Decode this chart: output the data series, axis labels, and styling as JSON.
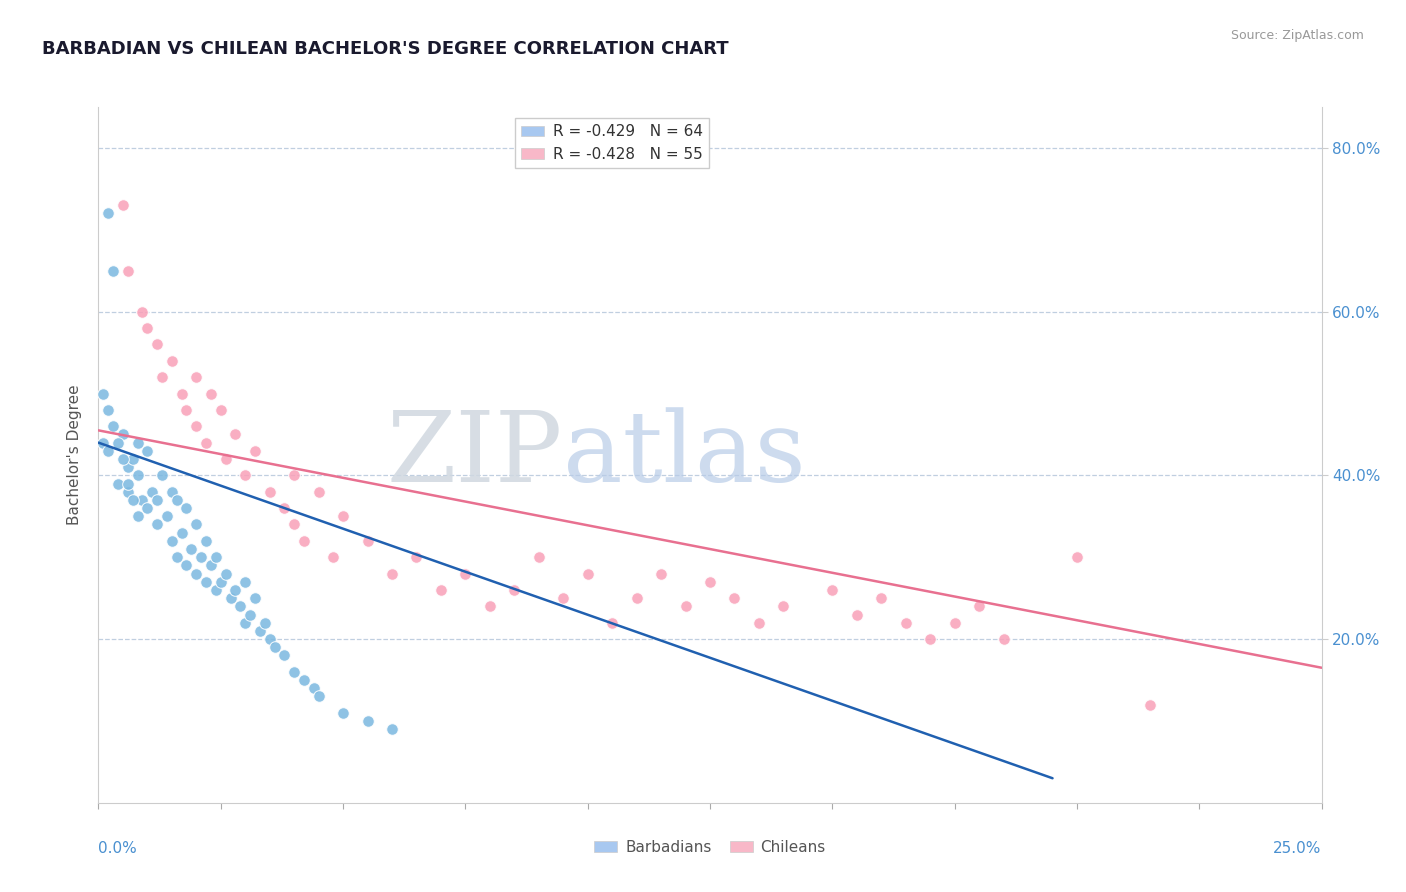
{
  "title": "BARBADIAN VS CHILEAN BACHELOR'S DEGREE CORRELATION CHART",
  "source": "Source: ZipAtlas.com",
  "ylabel": "Bachelor's Degree",
  "barbadian_color": "#7ab8e0",
  "chilean_color": "#f9a0b8",
  "barbadian_line_color": "#2060b0",
  "chilean_line_color": "#e87090",
  "xmin": 0.0,
  "xmax": 0.25,
  "ymin": 0.0,
  "ymax": 0.85,
  "barb_line_x0": 0.0,
  "barb_line_y0": 0.44,
  "barb_line_x1": 0.195,
  "barb_line_y1": 0.03,
  "chil_line_x0": 0.0,
  "chil_line_y0": 0.455,
  "chil_line_x1": 0.25,
  "chil_line_y1": 0.165,
  "barbadian_points": [
    [
      0.001,
      0.44
    ],
    [
      0.002,
      0.72
    ],
    [
      0.002,
      0.43
    ],
    [
      0.003,
      0.65
    ],
    [
      0.004,
      0.39
    ],
    [
      0.005,
      0.45
    ],
    [
      0.006,
      0.41
    ],
    [
      0.006,
      0.38
    ],
    [
      0.007,
      0.42
    ],
    [
      0.008,
      0.44
    ],
    [
      0.008,
      0.4
    ],
    [
      0.009,
      0.37
    ],
    [
      0.01,
      0.43
    ],
    [
      0.01,
      0.36
    ],
    [
      0.011,
      0.38
    ],
    [
      0.012,
      0.34
    ],
    [
      0.012,
      0.37
    ],
    [
      0.013,
      0.4
    ],
    [
      0.014,
      0.35
    ],
    [
      0.015,
      0.38
    ],
    [
      0.015,
      0.32
    ],
    [
      0.016,
      0.37
    ],
    [
      0.016,
      0.3
    ],
    [
      0.017,
      0.33
    ],
    [
      0.018,
      0.36
    ],
    [
      0.018,
      0.29
    ],
    [
      0.019,
      0.31
    ],
    [
      0.02,
      0.28
    ],
    [
      0.02,
      0.34
    ],
    [
      0.021,
      0.3
    ],
    [
      0.022,
      0.27
    ],
    [
      0.022,
      0.32
    ],
    [
      0.023,
      0.29
    ],
    [
      0.024,
      0.26
    ],
    [
      0.024,
      0.3
    ],
    [
      0.025,
      0.27
    ],
    [
      0.026,
      0.28
    ],
    [
      0.027,
      0.25
    ],
    [
      0.028,
      0.26
    ],
    [
      0.029,
      0.24
    ],
    [
      0.03,
      0.27
    ],
    [
      0.03,
      0.22
    ],
    [
      0.031,
      0.23
    ],
    [
      0.032,
      0.25
    ],
    [
      0.033,
      0.21
    ],
    [
      0.034,
      0.22
    ],
    [
      0.035,
      0.2
    ],
    [
      0.036,
      0.19
    ],
    [
      0.038,
      0.18
    ],
    [
      0.04,
      0.16
    ],
    [
      0.042,
      0.15
    ],
    [
      0.044,
      0.14
    ],
    [
      0.045,
      0.13
    ],
    [
      0.05,
      0.11
    ],
    [
      0.055,
      0.1
    ],
    [
      0.06,
      0.09
    ],
    [
      0.001,
      0.5
    ],
    [
      0.002,
      0.48
    ],
    [
      0.003,
      0.46
    ],
    [
      0.004,
      0.44
    ],
    [
      0.005,
      0.42
    ],
    [
      0.006,
      0.39
    ],
    [
      0.007,
      0.37
    ],
    [
      0.008,
      0.35
    ]
  ],
  "chilean_points": [
    [
      0.005,
      0.73
    ],
    [
      0.006,
      0.65
    ],
    [
      0.009,
      0.6
    ],
    [
      0.01,
      0.58
    ],
    [
      0.012,
      0.56
    ],
    [
      0.013,
      0.52
    ],
    [
      0.015,
      0.54
    ],
    [
      0.017,
      0.5
    ],
    [
      0.018,
      0.48
    ],
    [
      0.02,
      0.46
    ],
    [
      0.02,
      0.52
    ],
    [
      0.022,
      0.44
    ],
    [
      0.023,
      0.5
    ],
    [
      0.025,
      0.48
    ],
    [
      0.026,
      0.42
    ],
    [
      0.028,
      0.45
    ],
    [
      0.03,
      0.4
    ],
    [
      0.032,
      0.43
    ],
    [
      0.035,
      0.38
    ],
    [
      0.038,
      0.36
    ],
    [
      0.04,
      0.34
    ],
    [
      0.04,
      0.4
    ],
    [
      0.042,
      0.32
    ],
    [
      0.045,
      0.38
    ],
    [
      0.048,
      0.3
    ],
    [
      0.05,
      0.35
    ],
    [
      0.055,
      0.32
    ],
    [
      0.06,
      0.28
    ],
    [
      0.065,
      0.3
    ],
    [
      0.07,
      0.26
    ],
    [
      0.075,
      0.28
    ],
    [
      0.08,
      0.24
    ],
    [
      0.085,
      0.26
    ],
    [
      0.09,
      0.3
    ],
    [
      0.095,
      0.25
    ],
    [
      0.1,
      0.28
    ],
    [
      0.105,
      0.22
    ],
    [
      0.11,
      0.25
    ],
    [
      0.115,
      0.28
    ],
    [
      0.12,
      0.24
    ],
    [
      0.125,
      0.27
    ],
    [
      0.13,
      0.25
    ],
    [
      0.135,
      0.22
    ],
    [
      0.14,
      0.24
    ],
    [
      0.15,
      0.26
    ],
    [
      0.155,
      0.23
    ],
    [
      0.16,
      0.25
    ],
    [
      0.165,
      0.22
    ],
    [
      0.17,
      0.2
    ],
    [
      0.175,
      0.22
    ],
    [
      0.18,
      0.24
    ],
    [
      0.185,
      0.2
    ],
    [
      0.2,
      0.3
    ],
    [
      0.215,
      0.12
    ]
  ]
}
